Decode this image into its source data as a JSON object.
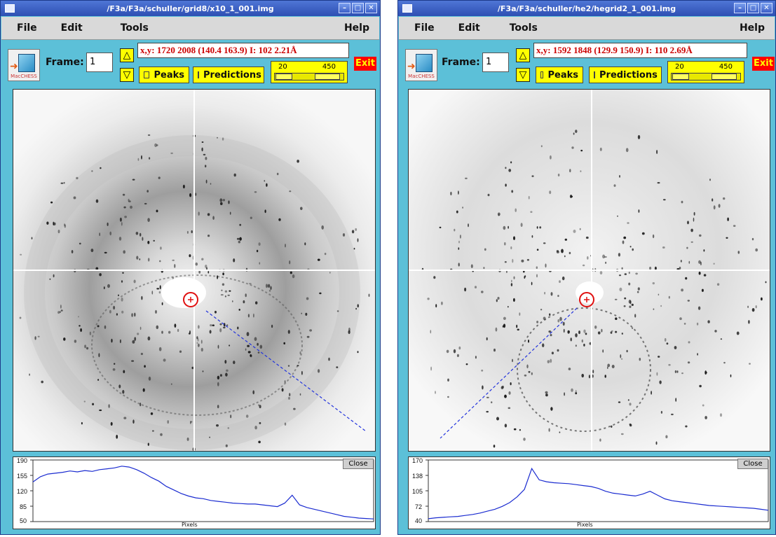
{
  "windows": [
    {
      "title": "/F3a/F3a/schuller/grid8/x10_1_001.img",
      "menu": [
        "File",
        "Edit",
        "Tools"
      ],
      "help": "Help",
      "frame_label": "Frame:",
      "frame_value": "1",
      "up_glyph": "△",
      "down_glyph": "▽",
      "coords_text": "x,y: 1720 2008 (140.4 163.9) I: 102 2.21Å",
      "peaks_label": "Peaks",
      "predictions_label": "Predictions",
      "slider_low": "20",
      "slider_high": "450",
      "exit_label": "Exit",
      "logo_text": "MacCHESS",
      "close_label": "Close",
      "plot_yticks": [
        "190",
        "155",
        "120",
        "85",
        "50"
      ],
      "plot_xlabel": "Pixels",
      "chart_data": {
        "type": "line",
        "ylim": [
          50,
          190
        ],
        "xlabel": "Pixels",
        "series": [
          {
            "values": [
              140,
              152,
              158,
              160,
              162,
              165,
              163,
              166,
              164,
              168,
              170,
              172,
              176,
              174,
              168,
              160,
              150,
              142,
              130,
              122,
              114,
              108,
              104,
              102,
              98,
              96,
              94,
              92,
              91,
              90,
              90,
              88,
              86,
              84,
              92,
              110,
              88,
              82,
              78,
              74,
              70,
              66,
              62,
              60,
              58,
              57,
              56
            ]
          }
        ]
      }
    },
    {
      "title": "/F3a/F3a/schuller/he2/hegrid2_1_001.img",
      "menu": [
        "File",
        "Edit",
        "Tools"
      ],
      "help": "Help",
      "frame_label": "Frame:",
      "frame_value": "1",
      "up_glyph": "△",
      "down_glyph": "▽",
      "coords_text": "x,y: 1592 1848 (129.9 150.9) I: 110 2.69Å",
      "peaks_label": "Peaks",
      "predictions_label": "Predictions",
      "slider_low": "20",
      "slider_high": "450",
      "exit_label": "Exit",
      "logo_text": "MacCHESS",
      "close_label": "Close",
      "plot_yticks": [
        "170",
        "138",
        "105",
        "72",
        "40"
      ],
      "plot_xlabel": "Pixels",
      "chart_data": {
        "type": "line",
        "ylim": [
          40,
          170
        ],
        "xlabel": "Pixels",
        "series": [
          {
            "values": [
              46,
              48,
              49,
              50,
              51,
              53,
              55,
              58,
              62,
              66,
              72,
              80,
              92,
              108,
              152,
              128,
              124,
              122,
              121,
              120,
              118,
              116,
              114,
              110,
              104,
              100,
              98,
              96,
              94,
              98,
              104,
              96,
              88,
              84,
              82,
              80,
              78,
              76,
              74,
              73,
              72,
              71,
              70,
              69,
              68,
              66,
              64
            ]
          }
        ]
      }
    }
  ]
}
